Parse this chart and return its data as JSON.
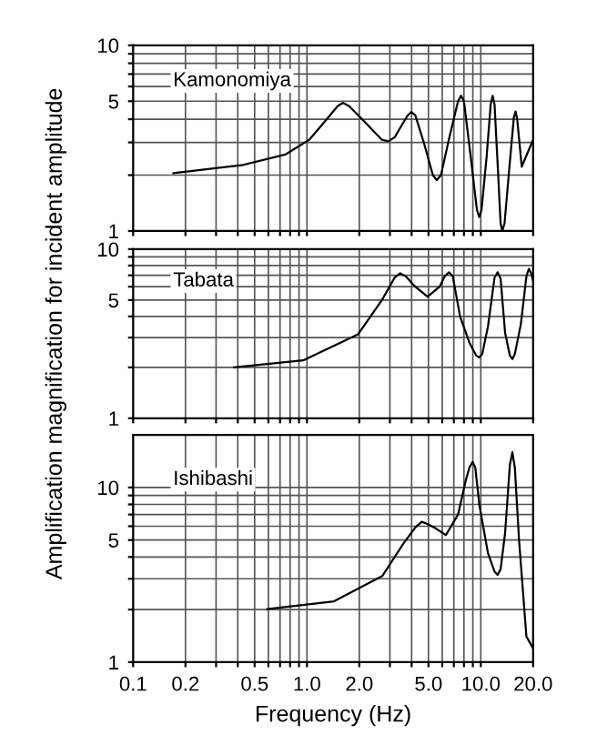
{
  "chart_data": [
    {
      "type": "line",
      "annotations": [
        "Kamonomiya"
      ],
      "log": "xy",
      "grid": true,
      "tick_labels": "y",
      "xlim": [
        0.1,
        20
      ],
      "ylim": [
        1,
        10
      ],
      "xticks": [
        0.1,
        {
          "value": 0.2,
          "label": null
        },
        {
          "value": 0.3,
          "label": null
        },
        {
          "value": 0.4,
          "label": null
        },
        {
          "value": 0.5,
          "label": null
        },
        {
          "value": 0.6,
          "label": null
        },
        {
          "value": 0.7,
          "label": null
        },
        {
          "value": 0.8,
          "label": null
        },
        {
          "value": 0.9,
          "label": null
        },
        {
          "value": 1,
          "label": null
        },
        {
          "value": 2,
          "label": null
        },
        {
          "value": 3,
          "label": null
        },
        {
          "value": 4,
          "label": null
        },
        {
          "value": 5,
          "label": null
        },
        {
          "value": 6,
          "label": null
        },
        {
          "value": 7,
          "label": null
        },
        {
          "value": 8,
          "label": null
        },
        {
          "value": 9,
          "label": null
        },
        {
          "value": 10,
          "label": null
        },
        {
          "value": 20,
          "label": null
        }
      ],
      "yticks": [
        1,
        {
          "value": 2,
          "label": null
        },
        {
          "value": 3,
          "label": null
        },
        {
          "value": 4,
          "label": null
        },
        5,
        {
          "value": 6,
          "label": null
        },
        {
          "value": 7,
          "label": null
        },
        {
          "value": 8,
          "label": null
        },
        {
          "value": 9,
          "label": null
        },
        10
      ],
      "series": [
        {
          "color": "#000000",
          "x": [
            0.17,
            0.43,
            0.75,
            1.03,
            1.3,
            1.5,
            1.61,
            1.75,
            2.13,
            2.7,
            2.94,
            3.2,
            3.5,
            3.8,
            3.98,
            4.2,
            4.7,
            5.3,
            5.58,
            5.9,
            6.6,
            7.4,
            7.7,
            8.0,
            8.8,
            9.5,
            9.8,
            10.1,
            10.8,
            11.4,
            11.7,
            12.0,
            12.5,
            13.0,
            13.3,
            13.7,
            14.6,
            15.5,
            15.85,
            16.2,
            17.2,
            19.9
          ],
          "values": [
            2.05,
            2.27,
            2.58,
            3.1,
            4.0,
            4.7,
            4.9,
            4.7,
            3.9,
            3.1,
            3.04,
            3.2,
            3.7,
            4.2,
            4.37,
            4.2,
            3.0,
            2.0,
            1.88,
            2.0,
            3.2,
            5.0,
            5.35,
            5.0,
            2.4,
            1.3,
            1.19,
            1.3,
            2.5,
            4.8,
            5.35,
            4.8,
            2.3,
            1.1,
            1.0,
            1.1,
            2.2,
            4.1,
            4.4,
            4.0,
            2.22,
            3.07
          ]
        }
      ]
    },
    {
      "type": "line",
      "annotations": [
        "Tabata"
      ],
      "log": "xy",
      "grid": true,
      "tick_labels": "y",
      "xlim": [
        0.1,
        20
      ],
      "ylim": [
        1,
        10
      ],
      "xticks": [
        0.1,
        {
          "value": 0.2,
          "label": null
        },
        {
          "value": 0.3,
          "label": null
        },
        {
          "value": 0.4,
          "label": null
        },
        {
          "value": 0.5,
          "label": null
        },
        {
          "value": 0.6,
          "label": null
        },
        {
          "value": 0.7,
          "label": null
        },
        {
          "value": 0.8,
          "label": null
        },
        {
          "value": 0.9,
          "label": null
        },
        {
          "value": 1,
          "label": null
        },
        {
          "value": 2,
          "label": null
        },
        {
          "value": 3,
          "label": null
        },
        {
          "value": 4,
          "label": null
        },
        {
          "value": 5,
          "label": null
        },
        {
          "value": 6,
          "label": null
        },
        {
          "value": 7,
          "label": null
        },
        {
          "value": 8,
          "label": null
        },
        {
          "value": 9,
          "label": null
        },
        {
          "value": 10,
          "label": null
        },
        {
          "value": 20,
          "label": null
        }
      ],
      "yticks": [
        1,
        {
          "value": 2,
          "label": null
        },
        {
          "value": 3,
          "label": null
        },
        {
          "value": 4,
          "label": null
        },
        5,
        {
          "value": 6,
          "label": null
        },
        {
          "value": 7,
          "label": null
        },
        {
          "value": 8,
          "label": null
        },
        {
          "value": 9,
          "label": null
        },
        10
      ],
      "ylabel": "Amplification magnification for incident amplitude",
      "series": [
        {
          "color": "#000000",
          "x": [
            0.38,
            0.95,
            1.97,
            2.7,
            3.2,
            3.44,
            3.7,
            4.2,
            4.94,
            5.8,
            6.2,
            6.56,
            6.9,
            7.6,
            8.6,
            9.4,
            9.8,
            10.2,
            11.0,
            12.0,
            12.5,
            13.0,
            13.8,
            14.7,
            15.2,
            15.7,
            17.0,
            18.3,
            18.9,
            19.5,
            20
          ],
          "values": [
            2.0,
            2.2,
            3.14,
            5.0,
            6.8,
            7.2,
            6.9,
            6.0,
            5.24,
            6.0,
            6.9,
            7.3,
            6.9,
            4.0,
            2.8,
            2.35,
            2.29,
            2.4,
            3.5,
            6.8,
            7.3,
            6.7,
            3.2,
            2.35,
            2.24,
            2.4,
            3.6,
            6.9,
            7.65,
            7.2,
            6.5
          ]
        }
      ]
    },
    {
      "type": "line",
      "annotations": [
        "Ishibashi"
      ],
      "log": "xy",
      "grid": true,
      "xlim": [
        0.1,
        20
      ],
      "ylim": [
        1,
        20
      ],
      "xticks": [
        0.1,
        0.2,
        {
          "value": 0.3,
          "label": null
        },
        {
          "value": 0.4,
          "label": null
        },
        0.5,
        {
          "value": 0.6,
          "label": null
        },
        {
          "value": 0.7,
          "label": null
        },
        {
          "value": 0.8,
          "label": null
        },
        {
          "value": 0.9,
          "label": null
        },
        {
          "value": 1,
          "label": "1.0"
        },
        {
          "value": 2,
          "label": "2.0"
        },
        {
          "value": 3,
          "label": null
        },
        {
          "value": 4,
          "label": null
        },
        {
          "value": 5,
          "label": "5.0"
        },
        {
          "value": 6,
          "label": null
        },
        {
          "value": 7,
          "label": null
        },
        {
          "value": 8,
          "label": null
        },
        {
          "value": 9,
          "label": null
        },
        {
          "value": 10,
          "label": "10.0"
        },
        {
          "value": 20,
          "label": "20.0"
        }
      ],
      "yticks": [
        1,
        {
          "value": 2,
          "label": null
        },
        {
          "value": 3,
          "label": null
        },
        {
          "value": 4,
          "label": null
        },
        5,
        {
          "value": 6,
          "label": null
        },
        {
          "value": 7,
          "label": null
        },
        {
          "value": 8,
          "label": null
        },
        {
          "value": 9,
          "label": null
        },
        10
      ],
      "xlabel": "Frequency (Hz)",
      "series": [
        {
          "color": "#000000",
          "x": [
            0.59,
            1.43,
            2.71,
            3.6,
            4.2,
            4.57,
            4.9,
            5.4,
            6.3,
            7.4,
            8.2,
            8.6,
            8.97,
            9.3,
            9.8,
            11.0,
            12.0,
            12.5,
            13.0,
            13.8,
            14.7,
            15.2,
            15.7,
            16.6,
            18.3,
            20
          ],
          "values": [
            2.01,
            2.23,
            3.11,
            4.8,
            5.9,
            6.36,
            6.2,
            5.9,
            5.34,
            7.0,
            11.0,
            13.0,
            14.0,
            13.0,
            8.0,
            4.2,
            3.3,
            3.16,
            3.4,
            5.5,
            13.5,
            15.9,
            13.0,
            5.0,
            1.4,
            1.2
          ]
        }
      ]
    }
  ]
}
